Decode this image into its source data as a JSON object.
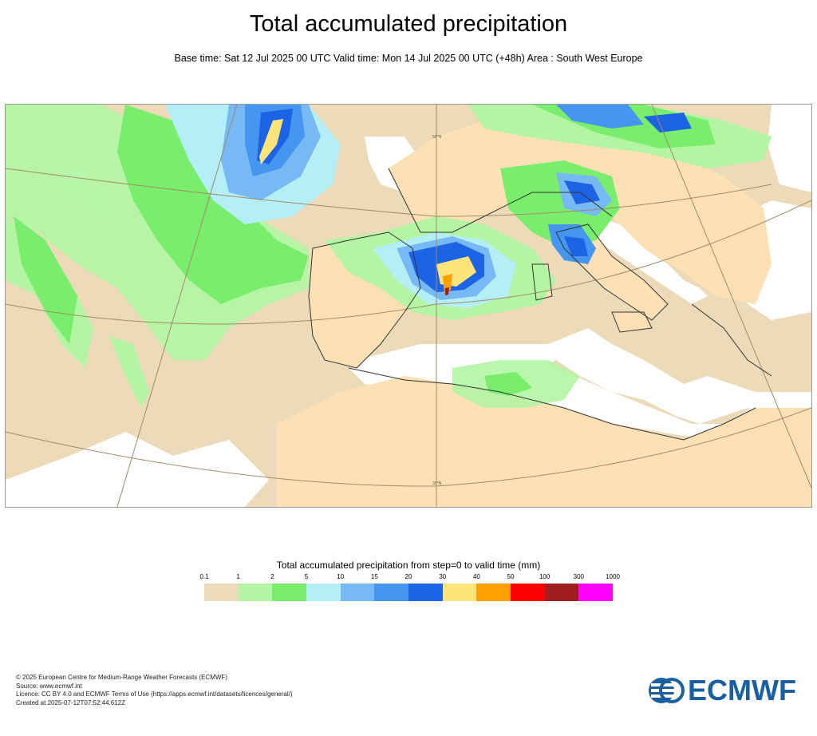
{
  "title": "Total accumulated precipitation",
  "subtitle": "Base time: Sat 12 Jul 2025 00 UTC Valid time: Mon 14 Jul 2025 00 UTC (+48h) Area : South West Europe",
  "map": {
    "lat_labels": [
      "50°N",
      "30°N"
    ],
    "colors": {
      "sea": "#ffffff",
      "land_dry": "#fde1b4",
      "coast": "#333333",
      "grid": "#a08a6a"
    }
  },
  "legend": {
    "title": "Total accumulated precipitation from step=0 to valid time (mm)",
    "ticks": [
      "0.1",
      "1",
      "2",
      "5",
      "10",
      "15",
      "20",
      "30",
      "40",
      "50",
      "100",
      "300",
      "1000"
    ],
    "colors": [
      "#ecdab8",
      "#b4f5a4",
      "#78ee6c",
      "#b4eef7",
      "#76b9f4",
      "#4496f0",
      "#1c63e6",
      "#fde57a",
      "#ffa000",
      "#ff0000",
      "#a01e1e",
      "#ff00ff"
    ]
  },
  "footer": {
    "line1": "© 2025 European Centre for Medium-Range Weather Forecasts (ECMWF)",
    "line2": "Source: www.ecmwf.int",
    "line3": "Licence: CC BY 4.0 and ECMWF Terms of Use (https://apps.ecmwf.int/datasets/licences/general/)",
    "line4": "Created at 2025-07-12T07:52:44.612Z"
  },
  "logo": {
    "text": "ECMWF",
    "color": "#1a5fa0"
  }
}
